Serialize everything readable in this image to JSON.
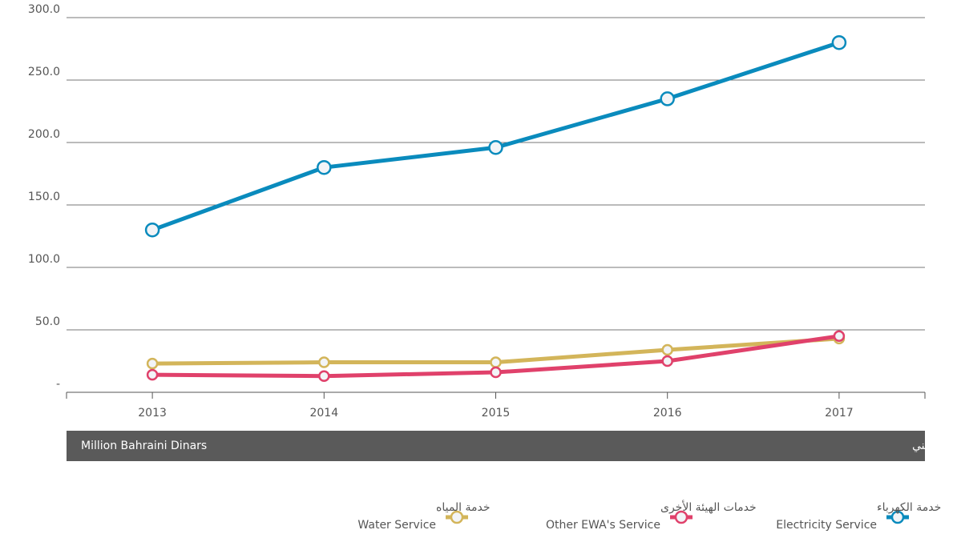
{
  "chart_data": {
    "type": "line",
    "categories": [
      "2013",
      "2014",
      "2015",
      "2016",
      "2017"
    ],
    "series": [
      {
        "name": "Electricity Service",
        "name_ar": "خدمة الكهرباء",
        "color": "#0a8bbd",
        "values": [
          130,
          180,
          196,
          235,
          280
        ]
      },
      {
        "name": "Other EWA's Service",
        "name_ar": "خدمات الهيئة الأخرى",
        "color": "#e0416b",
        "values": [
          14,
          13,
          16,
          25,
          45
        ]
      },
      {
        "name": "Water Service",
        "name_ar": "خدمة المياه",
        "color": "#d3b55a",
        "values": [
          23,
          24,
          24,
          34,
          43
        ]
      }
    ],
    "ylim": [
      0,
      300
    ],
    "yticks": [
      {
        "value": 0,
        "label": "-"
      },
      {
        "value": 50,
        "label": "50.0"
      },
      {
        "value": 100,
        "label": "100.0"
      },
      {
        "value": 150,
        "label": "150.0"
      },
      {
        "value": 200,
        "label": "200.0"
      },
      {
        "value": 250,
        "label": "250.0"
      },
      {
        "value": 300,
        "label": "300.0"
      }
    ],
    "grid": true,
    "unit_label": "Million Bahraini Dinars",
    "unit_label_ar": "مليون دينار بحريني"
  }
}
